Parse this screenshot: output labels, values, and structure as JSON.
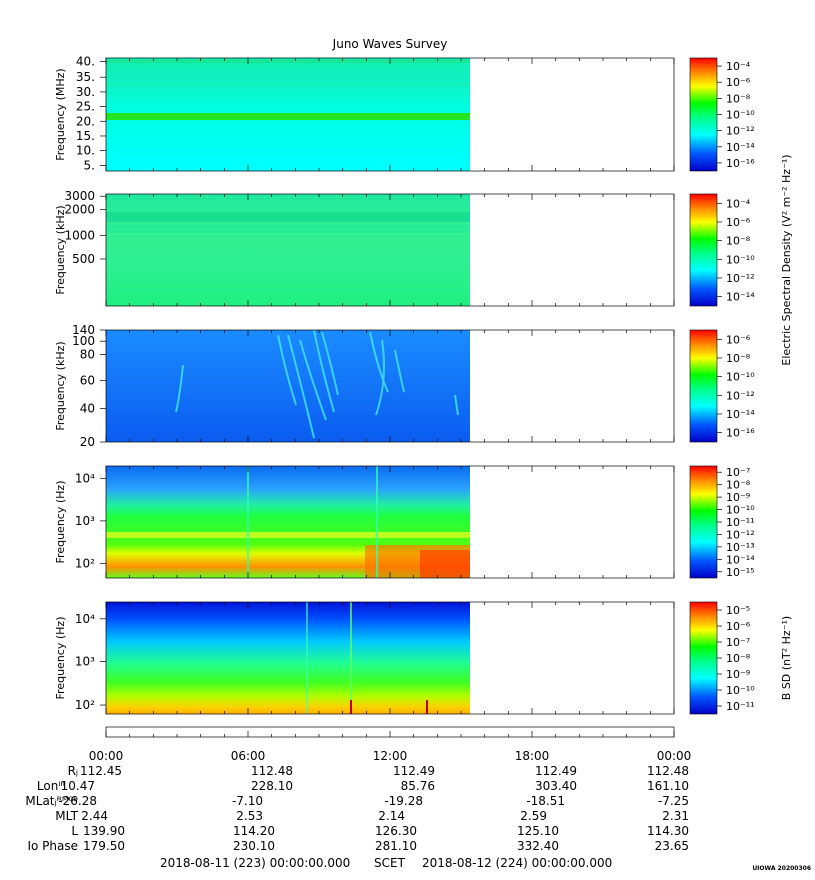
{
  "title": "Juno Waves Survey",
  "colorbar_labels": {
    "electric": "Electric Spectral Density (V² m⁻² Hz⁻¹)",
    "magnetic": "B SD (nT² Hz⁻¹)"
  },
  "chart_data": [
    {
      "type": "heatmap",
      "name": "waves-hfr-high",
      "ylabel": "Frequency (MHz)",
      "y_ticks": [
        "5.",
        "10.",
        "15.",
        "20.",
        "25.",
        "30.",
        "35.",
        "40."
      ],
      "colorbar_ticks": [
        "10⁻⁴",
        "10⁻⁶",
        "10⁻⁸",
        "10⁻¹⁰",
        "10⁻¹²",
        "10⁻¹⁴",
        "10⁻¹⁶"
      ],
      "data_extent": "00:00 to about 15:30 (no data afterwards)"
    },
    {
      "type": "heatmap",
      "name": "waves-hfr-low",
      "ylabel": "Frequency (kHz)",
      "y_ticks": [
        "500",
        "1000",
        "2000",
        "3000"
      ],
      "colorbar_ticks": [
        "10⁻⁴",
        "10⁻⁶",
        "10⁻⁸",
        "10⁻¹⁰",
        "10⁻¹²",
        "10⁻¹⁴"
      ]
    },
    {
      "type": "heatmap",
      "name": "waves-lfr-high",
      "ylabel": "Frequency (kHz)",
      "y_ticks": [
        "20",
        "40",
        "60",
        "80",
        "100",
        "140"
      ],
      "colorbar_ticks": [
        "10⁻⁶",
        "10⁻⁸",
        "10⁻¹⁰",
        "10⁻¹²",
        "10⁻¹⁴",
        "10⁻¹⁶"
      ]
    },
    {
      "type": "heatmap",
      "name": "waves-lfr-low-electric",
      "ylabel": "Frequency (Hz)",
      "y_ticks": [
        "10²",
        "10³",
        "10⁴"
      ],
      "colorbar_ticks": [
        "10⁻⁷",
        "10⁻⁸",
        "10⁻⁹",
        "10⁻¹⁰",
        "10⁻¹¹",
        "10⁻¹²",
        "10⁻¹³",
        "10⁻¹⁴",
        "10⁻¹⁵"
      ]
    },
    {
      "type": "heatmap",
      "name": "waves-lfr-low-magnetic",
      "ylabel": "Frequency (Hz)",
      "y_ticks": [
        "10²",
        "10³",
        "10⁴"
      ],
      "colorbar_ticks": [
        "10⁻⁵",
        "10⁻⁶",
        "10⁻⁷",
        "10⁻⁸",
        "10⁻⁹",
        "10⁻¹⁰",
        "10⁻¹¹"
      ]
    }
  ],
  "time_axis": [
    "00:00",
    "06:00",
    "12:00",
    "18:00",
    "00:00"
  ],
  "ephemeris": [
    {
      "label": "Rⱼ",
      "values": [
        "112.45",
        "112.48",
        "112.49",
        "112.49",
        "112.48"
      ]
    },
    {
      "label": "Lonᴵᴵᴵ",
      "values": [
        "10.47",
        "228.10",
        "85.76",
        "303.40",
        "161.10"
      ]
    },
    {
      "label": "MLatⱼᴿᴹ⁰⁹",
      "values": [
        "-26.28",
        "-7.10",
        "-19.28",
        "-18.51",
        "-7.25"
      ]
    },
    {
      "label": "MLT",
      "values": [
        "2.44",
        "2.53",
        "2.14",
        "2.59",
        "2.31"
      ]
    },
    {
      "label": "L",
      "values": [
        "139.90",
        "114.20",
        "126.30",
        "125.10",
        "114.30"
      ]
    },
    {
      "label": "Io Phase",
      "values": [
        "179.50",
        "230.10",
        "281.10",
        "332.40",
        "23.65"
      ]
    }
  ],
  "footer": {
    "start": "2018-08-11 (223) 00:00:00.000",
    "scet": "SCET",
    "end": "2018-08-12 (224) 00:00:00.000"
  },
  "watermark": "UIOWA 20200306"
}
